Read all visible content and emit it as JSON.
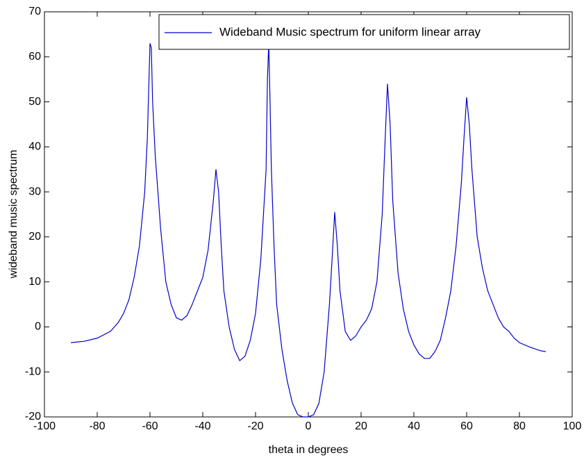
{
  "chart_data": {
    "type": "line",
    "xlabel": "theta in degrees",
    "ylabel": "wideband music spectrum",
    "x": [
      -90,
      -85,
      -80,
      -75,
      -72,
      -70,
      -68,
      -66,
      -64,
      -62,
      -61,
      -60,
      -59.5,
      -59,
      -58,
      -56,
      -54,
      -52,
      -50,
      -48,
      -46,
      -44,
      -42,
      -40,
      -38,
      -36,
      -35,
      -34,
      -33,
      -32,
      -30,
      -28,
      -26,
      -24,
      -22,
      -20,
      -18,
      -16,
      -15.5,
      -15,
      -14.5,
      -14,
      -13,
      -12,
      -10,
      -8,
      -6,
      -4,
      -2,
      0,
      2,
      4,
      6,
      8,
      9,
      10,
      11,
      12,
      14,
      16,
      18,
      20,
      22,
      24,
      26,
      28,
      29,
      30,
      31,
      32,
      34,
      36,
      38,
      40,
      42,
      44,
      46,
      48,
      50,
      52,
      54,
      56,
      58,
      59,
      60,
      61,
      62,
      64,
      66,
      68,
      70,
      72,
      74,
      76,
      78,
      80,
      84,
      88,
      90
    ],
    "series": [
      {
        "name": "Wideband Music spectrum for uniform linear array",
        "color": "#0000cc",
        "values": [
          -3.5,
          -3.2,
          -2.5,
          -1,
          1,
          3,
          6,
          11,
          18,
          30,
          42,
          63,
          62,
          50,
          38,
          22,
          10,
          5,
          2,
          1.5,
          2.5,
          5,
          8,
          11,
          17,
          28,
          35,
          30,
          18,
          8,
          0,
          -5,
          -7.5,
          -6.5,
          -3,
          3,
          15,
          35,
          55,
          63,
          50,
          35,
          18,
          5,
          -5,
          -12,
          -17,
          -19.5,
          -20,
          -20,
          -19.5,
          -17,
          -10,
          5,
          15,
          25.5,
          18,
          8,
          -1,
          -3,
          -2,
          0,
          1.5,
          4,
          10,
          25,
          40,
          54,
          45,
          28,
          12,
          4,
          -1,
          -4,
          -6,
          -7,
          -7,
          -5.5,
          -3,
          2,
          8,
          18,
          32,
          42,
          51,
          45,
          35,
          20,
          13,
          8,
          5,
          2,
          0,
          -1,
          -2.5,
          -3.5,
          -4.5,
          -5.3,
          -5.5
        ]
      }
    ],
    "xlim": [
      -100,
      100
    ],
    "xticks": [
      -100,
      -80,
      -60,
      -40,
      -20,
      0,
      20,
      40,
      60,
      80,
      100
    ],
    "ylim": [
      -20,
      70
    ],
    "yticks": [
      -20,
      -10,
      0,
      10,
      20,
      30,
      40,
      50,
      60,
      70
    ],
    "legend": "upper right"
  }
}
